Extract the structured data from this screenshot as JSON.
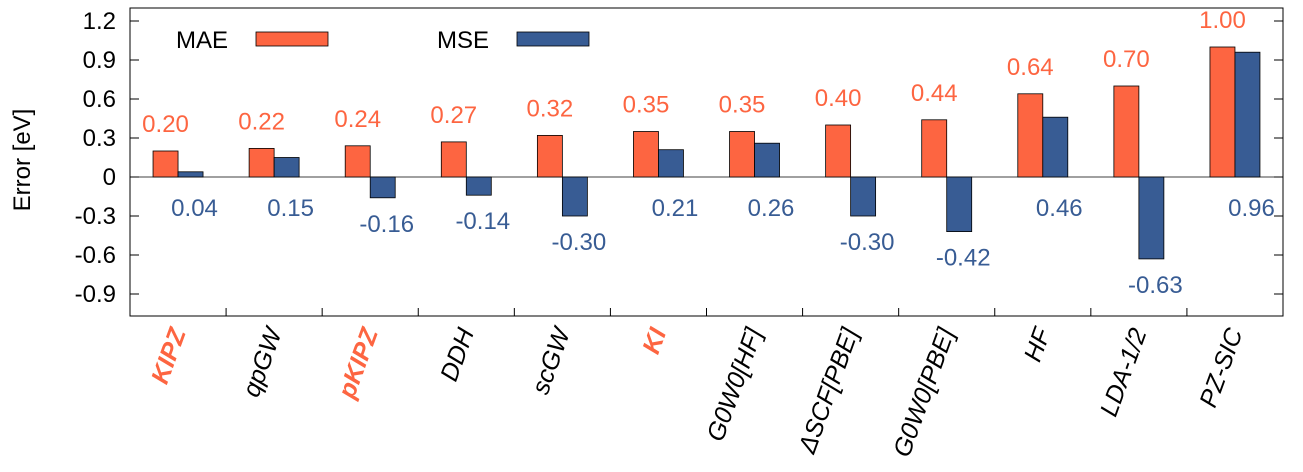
{
  "chart_data": {
    "type": "bar",
    "ylabel": "Error [eV]",
    "ylim": [
      -1.2,
      1.35
    ],
    "yticks": [
      1.2,
      0.9,
      0.6,
      0.3,
      0,
      -0.3,
      -0.6,
      -0.9
    ],
    "ytick_labels": [
      "1.2",
      "0.9",
      "0.6",
      "0.3",
      "0",
      "-0.3",
      "-0.6",
      "-0.9"
    ],
    "categories": [
      {
        "label": "KIPZ",
        "highlight": true
      },
      {
        "label": "qpGW",
        "highlight": false
      },
      {
        "label": "pKIPZ",
        "highlight": true
      },
      {
        "label": "DDH",
        "highlight": false
      },
      {
        "label": "scGW",
        "highlight": false
      },
      {
        "label": "KI",
        "highlight": true
      },
      {
        "label": "G0W0[HF]",
        "highlight": false
      },
      {
        "label": "ΔSCF[PBE]",
        "highlight": false
      },
      {
        "label": "G0W0[PBE]",
        "highlight": false
      },
      {
        "label": "HF",
        "highlight": false
      },
      {
        "label": "LDA-1/2",
        "highlight": false
      },
      {
        "label": "PZ-SIC",
        "highlight": false
      }
    ],
    "series": [
      {
        "name": "MAE",
        "color": "#fd6541",
        "values": [
          0.2,
          0.22,
          0.24,
          0.27,
          0.32,
          0.35,
          0.35,
          0.4,
          0.44,
          0.64,
          0.7,
          1.0
        ],
        "labels": [
          "0.20",
          "0.22",
          "0.24",
          "0.27",
          "0.32",
          "0.35",
          "0.35",
          "0.40",
          "0.44",
          "0.64",
          "0.70",
          "1.00"
        ]
      },
      {
        "name": "MSE",
        "color": "#385c94",
        "values": [
          0.04,
          0.15,
          -0.16,
          -0.14,
          -0.3,
          0.21,
          0.26,
          -0.3,
          -0.42,
          0.46,
          -0.63,
          0.96
        ],
        "labels": [
          "0.04",
          "0.15",
          "-0.16",
          "-0.14",
          "-0.30",
          "0.21",
          "0.26",
          "-0.30",
          "-0.42",
          "0.46",
          "-0.63",
          "0.96"
        ]
      }
    ],
    "highlight_color": "#fd6541",
    "grid": false,
    "legend_position": "top-left"
  }
}
